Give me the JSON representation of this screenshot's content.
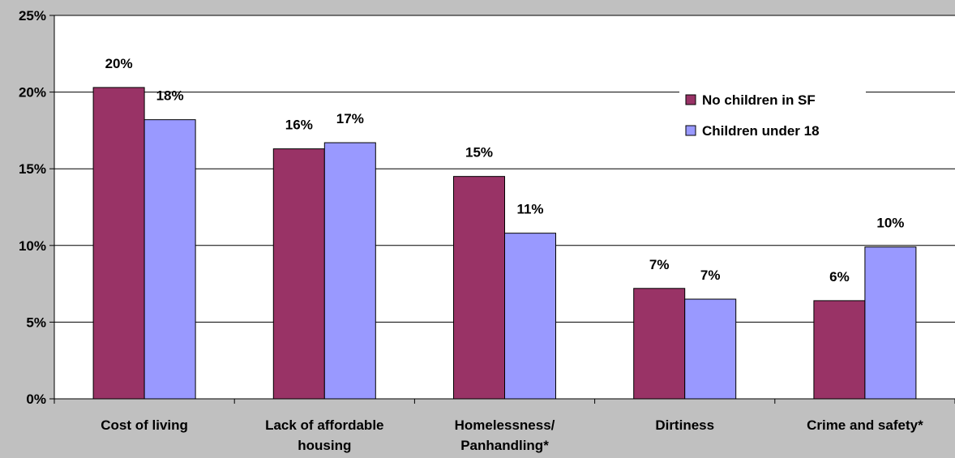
{
  "chart_data": {
    "type": "bar",
    "categories": [
      [
        "Cost of living"
      ],
      [
        "Lack of affordable",
        "housing"
      ],
      [
        "Homelessness/",
        "Panhandling*"
      ],
      [
        "Dirtiness"
      ],
      [
        "Crime and safety*"
      ]
    ],
    "series": [
      {
        "name": "No children in SF",
        "color": "#993366",
        "values": [
          20.3,
          16.3,
          14.5,
          7.2,
          6.4
        ],
        "labels": [
          "20%",
          "16%",
          "15%",
          "7%",
          "6%"
        ]
      },
      {
        "name": "Children under 18",
        "color": "#9999ff",
        "values": [
          18.2,
          16.7,
          10.8,
          6.5,
          9.9
        ],
        "labels": [
          "18%",
          "17%",
          "11%",
          "7%",
          "10%"
        ]
      }
    ],
    "ylim": [
      0,
      25
    ],
    "yticks": [
      0,
      5,
      10,
      15,
      20,
      25
    ],
    "ytick_labels": [
      "0%",
      "5%",
      "10%",
      "15%",
      "20%",
      "25%"
    ],
    "grid": true,
    "legend_position": "top-right",
    "plot_background": "#ffffff",
    "page_background": "#c0c0c0"
  }
}
